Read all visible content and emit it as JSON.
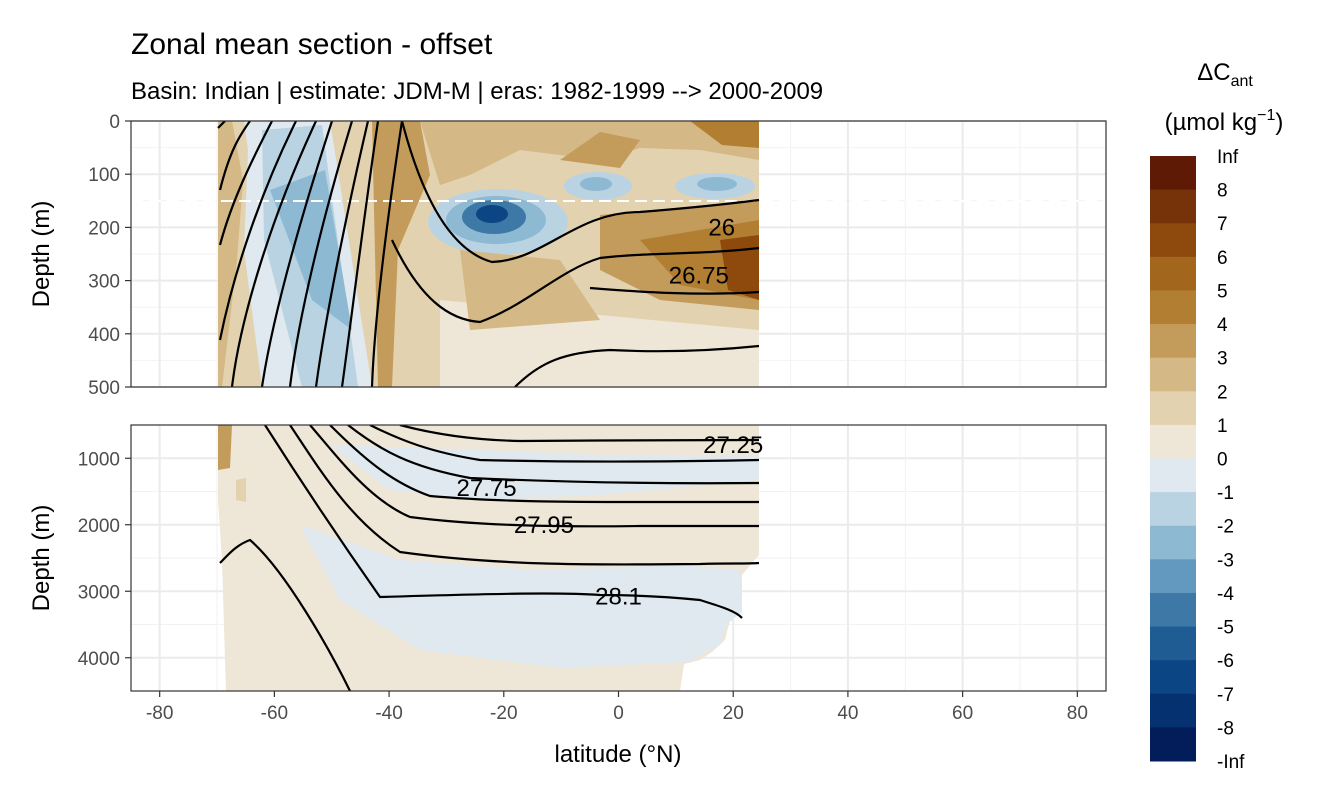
{
  "chart_data": {
    "type": "heatmap",
    "title": "Zonal mean section - offset",
    "subtitle": "Basin: Indian | estimate: JDM-M | eras: 1982-1999 --> 2000-2009",
    "xlabel": "latitude (°N)",
    "ylabel": "Depth (m)",
    "xlim": [
      -85,
      85
    ],
    "x_ticks": [
      -80,
      -60,
      -40,
      -20,
      0,
      20,
      40,
      60,
      80
    ],
    "x_tick_labels": [
      "-80",
      "-60",
      "-40",
      "-20",
      "0",
      "20",
      "40",
      "60",
      "80"
    ],
    "data_extent_lat": [
      -70,
      24.5
    ],
    "panels": [
      {
        "name": "upper",
        "ylim": [
          0,
          500
        ],
        "y_ticks": [
          0,
          100,
          200,
          300,
          400,
          500
        ],
        "y_tick_labels": [
          "0",
          "100",
          "200",
          "300",
          "400",
          "500"
        ],
        "reference_line_depth": 150
      },
      {
        "name": "lower",
        "ylim": [
          500,
          4500
        ],
        "y_ticks": [
          1000,
          2000,
          3000,
          4000
        ],
        "y_tick_labels": [
          "1000",
          "2000",
          "3000",
          "4000"
        ]
      }
    ],
    "legend": {
      "title_main": "ΔC",
      "title_sub": "ant",
      "units_pre": "(µmol kg",
      "units_exp": "−1",
      "units_post": ")",
      "labels": [
        "Inf",
        "8",
        "7",
        "6",
        "5",
        "4",
        "3",
        "2",
        "1",
        "0",
        "-1",
        "-2",
        "-3",
        "-4",
        "-5",
        "-6",
        "-7",
        "-8",
        "-Inf"
      ],
      "colors": [
        "#5e1a05",
        "#763208",
        "#8e4a0c",
        "#a2661c",
        "#b27f32",
        "#c39c5b",
        "#d4b886",
        "#e3d2b0",
        "#eee6d6",
        "#dfe9ef",
        "#b9d3e3",
        "#8eb9d3",
        "#6399be",
        "#3e78a6",
        "#1f5c94",
        "#0c4583",
        "#063170",
        "#031d5a"
      ]
    },
    "isopycnals": [
      {
        "label": "26",
        "lat": 18,
        "depth": 200
      },
      {
        "label": "26.75",
        "lat": 14,
        "depth": 290
      },
      {
        "label": "27.25",
        "lat": 20,
        "depth": 800
      },
      {
        "label": "27.75",
        "lat": -23,
        "depth": 1450
      },
      {
        "label": "27.95",
        "lat": -13,
        "depth": 2000
      },
      {
        "label": "28.1",
        "lat": 0,
        "depth": 3080
      }
    ]
  }
}
